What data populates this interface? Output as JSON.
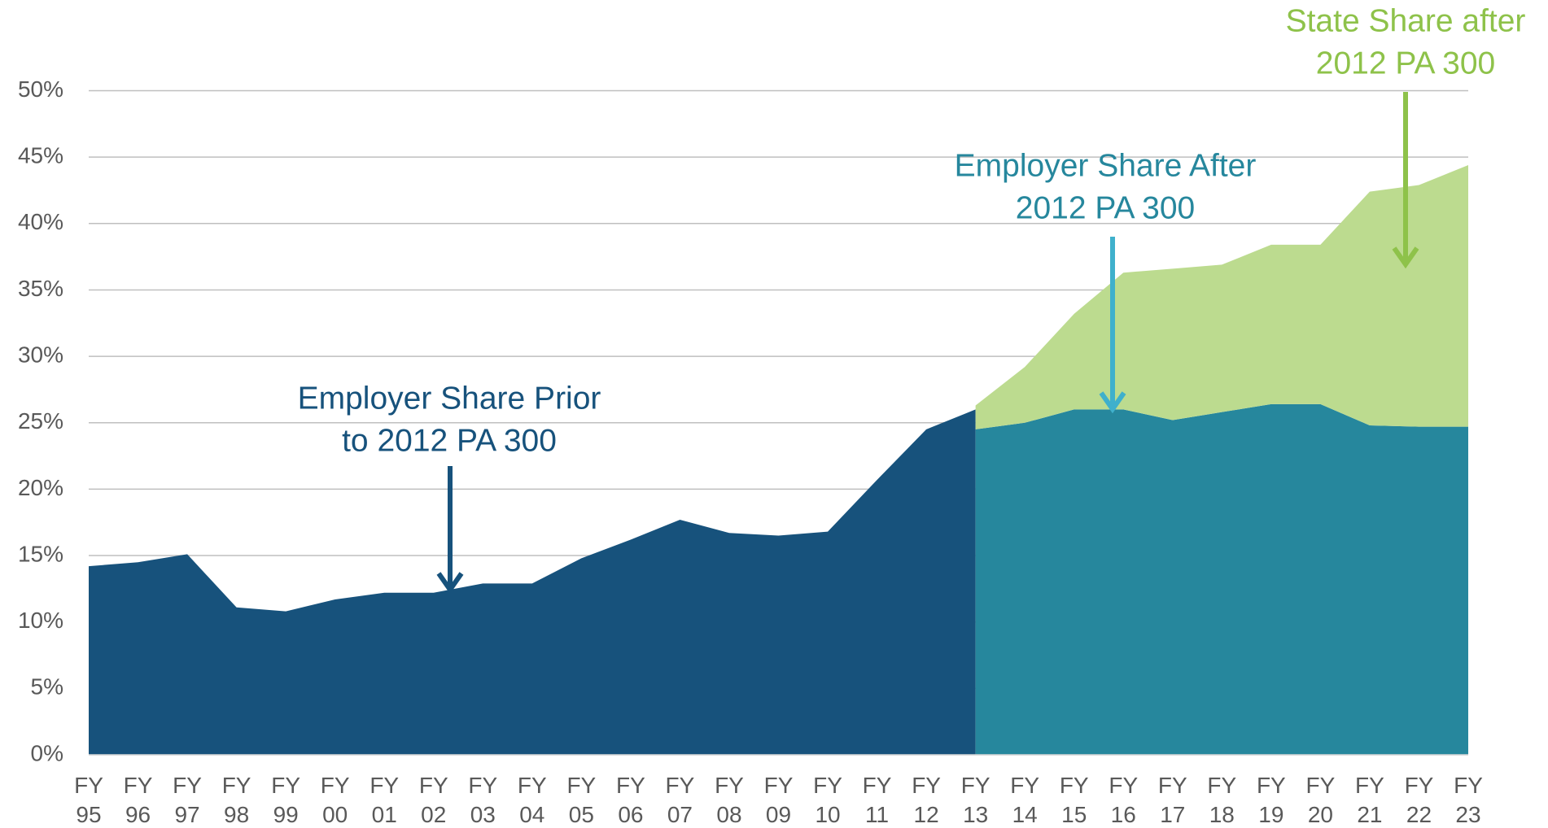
{
  "chart_data": {
    "type": "area",
    "categories": [
      "FY 95",
      "FY 96",
      "FY 97",
      "FY 98",
      "FY 99",
      "FY 00",
      "FY 01",
      "FY 02",
      "FY 03",
      "FY 04",
      "FY 05",
      "FY 06",
      "FY 07",
      "FY 08",
      "FY 09",
      "FY 10",
      "FY 11",
      "FY 12",
      "FY 13",
      "FY 14",
      "FY 15",
      "FY 16",
      "FY 17",
      "FY 18",
      "FY 19",
      "FY 20",
      "FY 21",
      "FY 22",
      "FY 23"
    ],
    "series": [
      {
        "color": "#17527c",
        "values": [
          14.2,
          14.5,
          15.1,
          11.1,
          10.8,
          11.7,
          12.2,
          12.2,
          12.9,
          12.9,
          14.8,
          16.2,
          17.7,
          16.7,
          16.5,
          16.8,
          20.7,
          24.5,
          26.0,
          null,
          null,
          null,
          null,
          null,
          null,
          null,
          null,
          null,
          null
        ]
      },
      {
        "color": "#26879d",
        "values": [
          null,
          null,
          null,
          null,
          null,
          null,
          null,
          null,
          null,
          null,
          null,
          null,
          null,
          null,
          null,
          null,
          null,
          null,
          24.5,
          25.0,
          26.0,
          26.0,
          25.2,
          25.8,
          26.4,
          26.4,
          24.8,
          24.7,
          24.7
        ]
      },
      {
        "color": "#bcdb8f",
        "stack_on": 1,
        "values": [
          null,
          null,
          null,
          null,
          null,
          null,
          null,
          null,
          null,
          null,
          null,
          null,
          null,
          null,
          null,
          null,
          null,
          null,
          1.8,
          4.2,
          7.2,
          10.3,
          11.4,
          11.1,
          12.0,
          12.0,
          17.6,
          18.2,
          19.7
        ]
      }
    ],
    "ylim": [
      0,
      50
    ],
    "yticks": [
      {
        "value": 0,
        "label": "0%"
      },
      {
        "value": 5,
        "label": "5%"
      },
      {
        "value": 10,
        "label": "10%"
      },
      {
        "value": 15,
        "label": "15%"
      },
      {
        "value": 20,
        "label": "20%"
      },
      {
        "value": 25,
        "label": "25%"
      },
      {
        "value": 30,
        "label": "30%"
      },
      {
        "value": 35,
        "label": "35%"
      },
      {
        "value": 40,
        "label": "40%"
      },
      {
        "value": 45,
        "label": "45%"
      },
      {
        "value": 50,
        "label": "50%"
      }
    ],
    "grid": true,
    "annotations": [
      {
        "lines": [
          "Employer Share Prior",
          "to 2012 PA 300"
        ],
        "color": "#17527c",
        "arrow_color": "#17527c"
      },
      {
        "lines": [
          "Employer Share After",
          "2012 PA 300"
        ],
        "color": "#26879d",
        "arrow_color": "#3fb0cc"
      },
      {
        "lines": [
          "State Share after",
          "2012 PA 300"
        ],
        "color": "#8ec24a",
        "arrow_color": "#8ec24a"
      }
    ]
  }
}
